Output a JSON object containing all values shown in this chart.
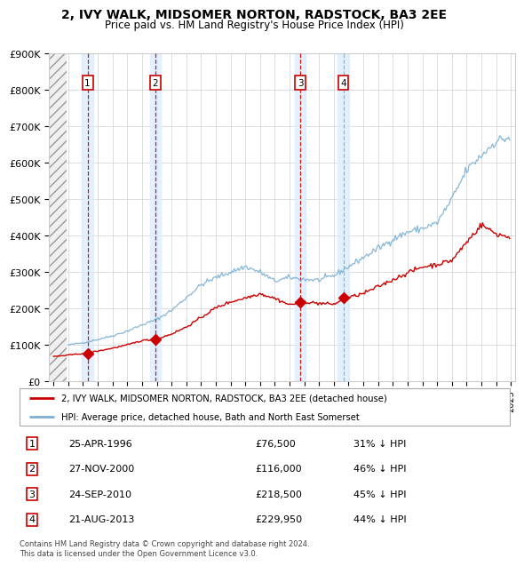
{
  "title": "2, IVY WALK, MIDSOMER NORTON, RADSTOCK, BA3 2EE",
  "subtitle": "Price paid vs. HM Land Registry's House Price Index (HPI)",
  "ylim": [
    0,
    900000
  ],
  "yticks": [
    0,
    100000,
    200000,
    300000,
    400000,
    500000,
    600000,
    700000,
    800000,
    900000
  ],
  "ytick_labels": [
    "£0",
    "£100K",
    "£200K",
    "£300K",
    "£400K",
    "£500K",
    "£600K",
    "£700K",
    "£800K",
    "£900K"
  ],
  "xlim_start": 1993.7,
  "xlim_end": 2025.3,
  "hatch_end": 1994.92,
  "purchases": [
    {
      "num": 1,
      "date": "25-APR-1996",
      "year": 1996.31,
      "price": 76500,
      "label": "25-APR-1996",
      "price_str": "£76,500",
      "pct": "31% ↓ HPI",
      "line_color": "#cc0000",
      "line_style": "dashed"
    },
    {
      "num": 2,
      "date": "27-NOV-2000",
      "year": 2000.9,
      "price": 116000,
      "label": "27-NOV-2000",
      "price_str": "£116,000",
      "pct": "46% ↓ HPI",
      "line_color": "#cc0000",
      "line_style": "dashed"
    },
    {
      "num": 3,
      "date": "24-SEP-2010",
      "year": 2010.73,
      "price": 218500,
      "label": "24-SEP-2010",
      "price_str": "£218,500",
      "pct": "45% ↓ HPI",
      "line_color": "#cc0000",
      "line_style": "dashed"
    },
    {
      "num": 4,
      "date": "21-AUG-2013",
      "year": 2013.64,
      "price": 229950,
      "label": "21-AUG-2013",
      "price_str": "£229,950",
      "pct": "44% ↓ HPI",
      "line_color": "#7ab0d4",
      "line_style": "dashed"
    }
  ],
  "hpi_color": "#7ab0d4",
  "price_color": "#cc0000",
  "shade_color": "#ddeeff",
  "legend_line1": "2, IVY WALK, MIDSOMER NORTON, RADSTOCK, BA3 2EE (detached house)",
  "legend_line2": "HPI: Average price, detached house, Bath and North East Somerset",
  "footer": "Contains HM Land Registry data © Crown copyright and database right 2024.\nThis data is licensed under the Open Government Licence v3.0."
}
